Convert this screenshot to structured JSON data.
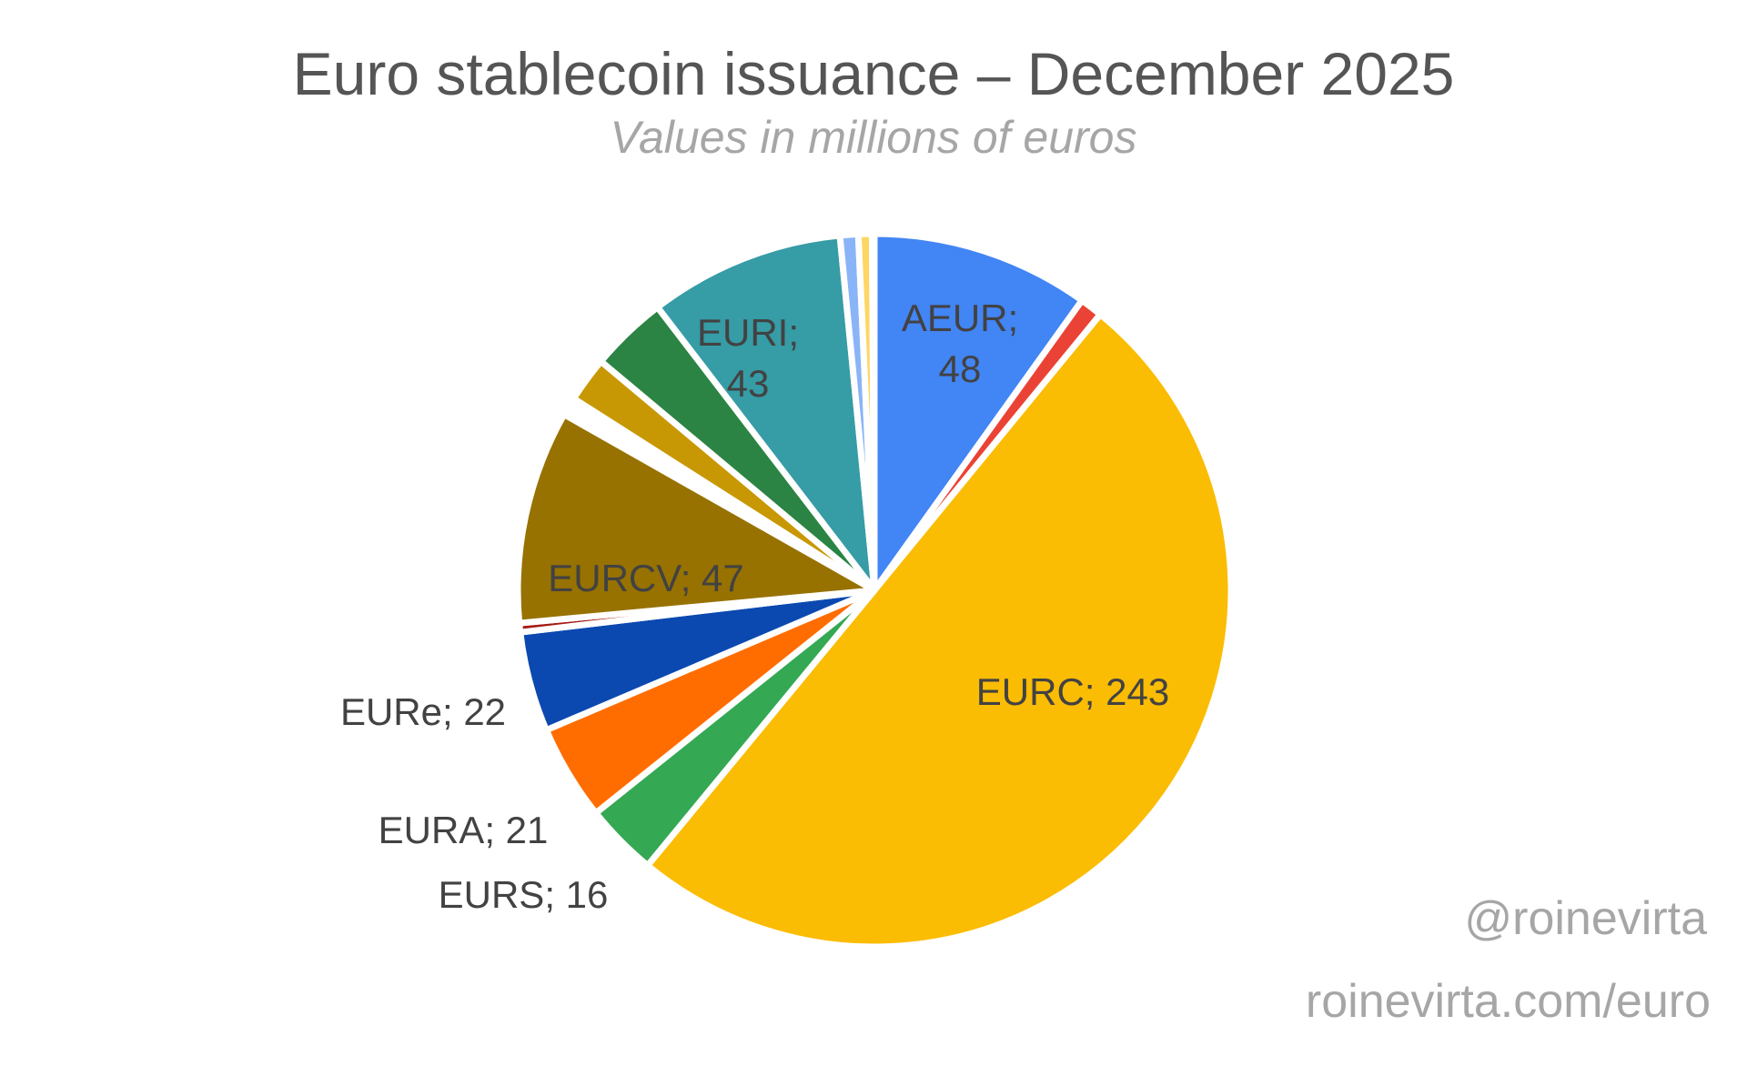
{
  "chart_data": {
    "type": "pie",
    "title": "Euro stablecoin issuance – December 2025",
    "subtitle": "Values in millions of euros",
    "start_angle_deg": 0,
    "direction": "clockwise",
    "slices": [
      {
        "name": "AEUR",
        "value": 48,
        "label": "AEUR; 48",
        "color": "#4285f4",
        "labeled": true
      },
      {
        "name": "",
        "value": 5,
        "color": "#ea4335",
        "labeled": false
      },
      {
        "name": "EURC",
        "value": 243,
        "label": "EURC; 243",
        "color": "#fbbc04",
        "labeled": true
      },
      {
        "name": "EURS",
        "value": 16,
        "label": "EURS; 16",
        "color": "#34a853",
        "labeled": true
      },
      {
        "name": "EURA",
        "value": 21,
        "label": "EURA; 21",
        "color": "#ff6d01",
        "labeled": true
      },
      {
        "name": "EURe",
        "value": 22,
        "label": "EURe; 22",
        "color": "#0b49b0",
        "labeled": true
      },
      {
        "name": "",
        "value": 2,
        "color": "#a51c14",
        "labeled": false
      },
      {
        "name": "EURCV",
        "value": 47,
        "label": "EURCV; 47",
        "color": "#977200",
        "labeled": true
      },
      {
        "name": "",
        "value": 4,
        "color": "#ffffff",
        "labeled": false
      },
      {
        "name": "",
        "value": 10,
        "color": "#c89804",
        "labeled": false
      },
      {
        "name": "",
        "value": 17,
        "color": "#2b8443",
        "labeled": false
      },
      {
        "name": "EURI",
        "value": 43,
        "label": "EURI; 43",
        "color": "#369ca6",
        "labeled": true
      },
      {
        "name": "",
        "value": 4,
        "color": "#8ab4f8",
        "labeled": false
      },
      {
        "name": "",
        "value": 3,
        "color": "#fdd663",
        "labeled": false
      },
      {
        "name": "",
        "value": 0.5,
        "color": "#81c995",
        "labeled": false
      }
    ]
  },
  "watermark": {
    "handle": "@roinevirta",
    "url": "roinevirta.com/euro"
  }
}
